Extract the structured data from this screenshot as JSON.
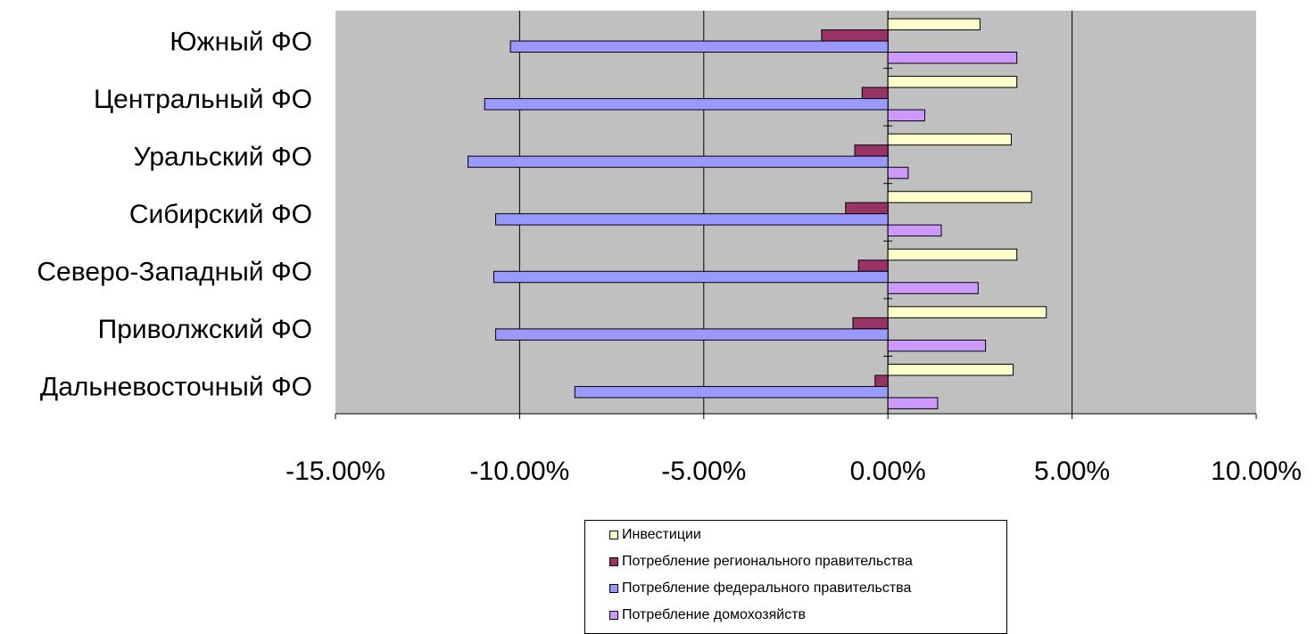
{
  "chart_data": {
    "type": "bar",
    "orientation": "horizontal",
    "categories": [
      "Южный ФО",
      "Центральный ФО",
      "Уральский ФО",
      "Сибирский ФО",
      "Северо-Западный ФО",
      "Приволжский ФО",
      "Дальневосточный ФО"
    ],
    "series": [
      {
        "name": "Инвестиции",
        "color": "#ffffcc",
        "values": [
          2.5,
          3.5,
          3.35,
          3.9,
          3.5,
          4.3,
          3.4
        ]
      },
      {
        "name": "Потребление регионального правительства",
        "color": "#993366",
        "values": [
          -1.8,
          -0.7,
          -0.9,
          -1.15,
          -0.8,
          -0.95,
          -0.35
        ]
      },
      {
        "name": "Потребление федерального правительства",
        "color": "#9999ff",
        "values": [
          -10.25,
          -10.95,
          -11.4,
          -10.65,
          -10.7,
          -10.65,
          -8.5
        ]
      },
      {
        "name": "Потребление домохозяйств",
        "color": "#cc99ff",
        "values": [
          3.5,
          1.0,
          0.55,
          1.45,
          2.45,
          2.65,
          1.35
        ]
      }
    ],
    "xlim": [
      -15,
      10
    ],
    "xticks": [
      "-15.00%",
      "-10.00%",
      "-5.00%",
      "0.00%",
      "5.00%",
      "10.00%"
    ],
    "grid": true,
    "plot_background": "#c0c0c0",
    "legend_position": "bottom"
  }
}
